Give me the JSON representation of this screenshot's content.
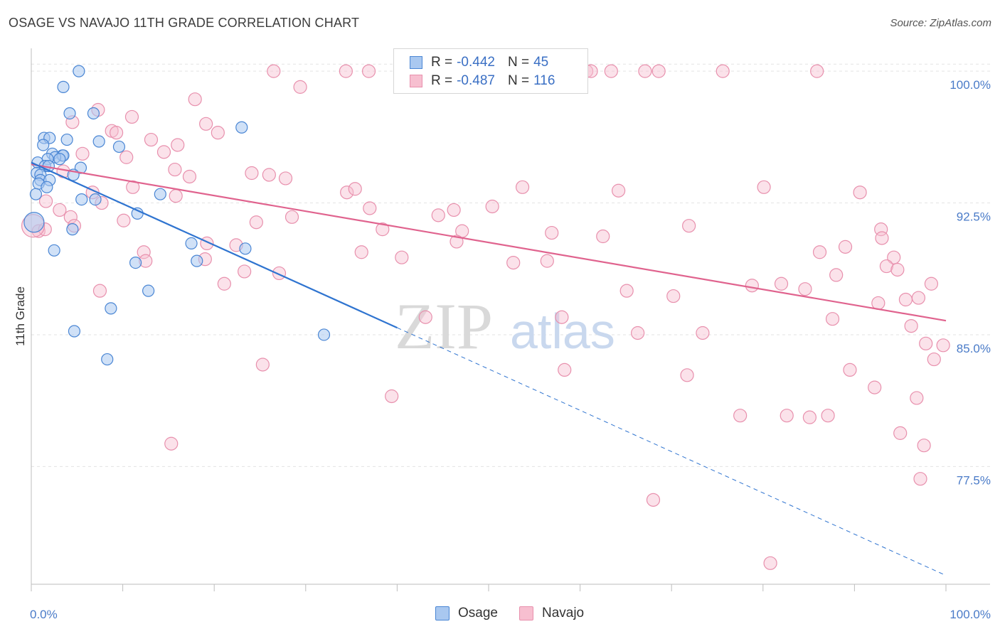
{
  "title": "OSAGE VS NAVAJO 11TH GRADE CORRELATION CHART",
  "source": "Source: ZipAtlas.com",
  "watermark": {
    "zip": "ZIP",
    "atlas": "atlas"
  },
  "colors": {
    "osage_fill": "#a9c8f0",
    "osage_stroke": "#4a86d4",
    "osage_line": "#2f74d0",
    "navajo_fill": "#f7bfd0",
    "navajo_stroke": "#e890ad",
    "navajo_line": "#e0638e",
    "grid": "#e3e3e3",
    "tick_text": "#4a7bc8"
  },
  "legend": {
    "rows": [
      {
        "r_label": "R =",
        "r_value": "-0.442",
        "n_label": "N =",
        "n_value": "45"
      },
      {
        "r_label": "R =",
        "r_value": "-0.487",
        "n_label": "N =",
        "n_value": "116"
      }
    ],
    "series": [
      "Osage",
      "Navajo"
    ]
  },
  "chart_data": {
    "type": "scatter",
    "ylabel": "11th Grade",
    "xlim": [
      0,
      100
    ],
    "ylim": [
      70.8,
      101.3
    ],
    "y_ticks": [
      {
        "value": 100.0,
        "label": "100.0%"
      },
      {
        "value": 92.5,
        "label": "92.5%"
      },
      {
        "value": 85.0,
        "label": "85.0%"
      },
      {
        "value": 77.5,
        "label": "77.5%"
      }
    ],
    "x_tick_labels": {
      "min": "0.0%",
      "max": "100.0%"
    },
    "grid": true,
    "legend_position": "top-center",
    "series": [
      {
        "name": "Osage",
        "trend": {
          "x": [
            0,
            40
          ],
          "y": [
            94.8,
            85.4
          ],
          "dashed_to": [
            100,
            71.3
          ]
        },
        "points": [
          [
            5.2,
            100.0
          ],
          [
            3.5,
            99.1
          ],
          [
            4.2,
            97.6
          ],
          [
            6.8,
            97.6
          ],
          [
            23.0,
            96.8
          ],
          [
            1.4,
            96.2
          ],
          [
            2.0,
            96.2
          ],
          [
            3.9,
            96.1
          ],
          [
            7.4,
            96.0
          ],
          [
            1.3,
            95.8
          ],
          [
            9.6,
            95.7
          ],
          [
            2.3,
            95.3
          ],
          [
            3.4,
            95.2
          ],
          [
            3.5,
            95.2
          ],
          [
            2.6,
            95.1
          ],
          [
            3.1,
            95.0
          ],
          [
            1.8,
            95.0
          ],
          [
            0.7,
            94.8
          ],
          [
            1.5,
            94.6
          ],
          [
            1.9,
            94.6
          ],
          [
            5.4,
            94.5
          ],
          [
            0.6,
            94.2
          ],
          [
            1.0,
            94.1
          ],
          [
            4.6,
            94.1
          ],
          [
            1.0,
            93.8
          ],
          [
            2.0,
            93.8
          ],
          [
            0.8,
            93.6
          ],
          [
            1.7,
            93.4
          ],
          [
            0.5,
            93.0
          ],
          [
            14.1,
            93.0
          ],
          [
            5.5,
            92.7
          ],
          [
            7.0,
            92.7
          ],
          [
            11.6,
            91.9
          ],
          [
            4.5,
            91.0
          ],
          [
            17.5,
            90.2
          ],
          [
            23.4,
            89.9
          ],
          [
            2.5,
            89.8
          ],
          [
            11.4,
            89.1
          ],
          [
            18.1,
            89.2
          ],
          [
            12.8,
            87.5
          ],
          [
            8.7,
            86.5
          ],
          [
            4.7,
            85.2
          ],
          [
            32.0,
            85.0
          ],
          [
            8.3,
            83.6
          ],
          [
            0.3,
            91.4
          ]
        ]
      },
      {
        "name": "Navajo",
        "trend": {
          "x": [
            0,
            100
          ],
          "y": [
            94.7,
            85.8
          ]
        },
        "points": [
          [
            26.5,
            100.0
          ],
          [
            34.4,
            100.0
          ],
          [
            36.9,
            100.0
          ],
          [
            60.7,
            100.0
          ],
          [
            61.2,
            100.0
          ],
          [
            63.4,
            100.0
          ],
          [
            67.1,
            100.0
          ],
          [
            68.6,
            100.0
          ],
          [
            75.6,
            100.0
          ],
          [
            85.9,
            100.0
          ],
          [
            29.4,
            99.1
          ],
          [
            17.9,
            98.4
          ],
          [
            7.3,
            97.8
          ],
          [
            11.0,
            97.4
          ],
          [
            4.5,
            97.1
          ],
          [
            19.1,
            97.0
          ],
          [
            8.8,
            96.6
          ],
          [
            9.3,
            96.5
          ],
          [
            20.4,
            96.5
          ],
          [
            13.1,
            96.1
          ],
          [
            16.0,
            95.8
          ],
          [
            5.6,
            95.3
          ],
          [
            10.4,
            95.1
          ],
          [
            14.5,
            95.4
          ],
          [
            3.5,
            94.3
          ],
          [
            15.7,
            94.4
          ],
          [
            24.1,
            94.2
          ],
          [
            17.3,
            94.0
          ],
          [
            26.0,
            94.1
          ],
          [
            27.8,
            93.9
          ],
          [
            11.1,
            93.4
          ],
          [
            6.7,
            93.1
          ],
          [
            34.5,
            93.1
          ],
          [
            35.4,
            93.3
          ],
          [
            53.7,
            93.4
          ],
          [
            64.2,
            93.2
          ],
          [
            80.1,
            93.4
          ],
          [
            90.6,
            93.1
          ],
          [
            1.6,
            92.6
          ],
          [
            7.7,
            92.5
          ],
          [
            37.0,
            92.2
          ],
          [
            46.2,
            92.1
          ],
          [
            3.1,
            92.1
          ],
          [
            10.1,
            91.5
          ],
          [
            4.3,
            91.7
          ],
          [
            24.6,
            91.4
          ],
          [
            28.5,
            91.7
          ],
          [
            71.9,
            91.2
          ],
          [
            38.4,
            91.0
          ],
          [
            47.1,
            90.9
          ],
          [
            56.9,
            90.8
          ],
          [
            0.8,
            90.9
          ],
          [
            1.5,
            91.0
          ],
          [
            4.7,
            91.2
          ],
          [
            92.9,
            91.0
          ],
          [
            93.0,
            90.5
          ],
          [
            46.5,
            90.3
          ],
          [
            19.2,
            90.2
          ],
          [
            22.4,
            90.1
          ],
          [
            89.0,
            90.0
          ],
          [
            12.3,
            89.7
          ],
          [
            36.1,
            89.7
          ],
          [
            40.5,
            89.4
          ],
          [
            86.2,
            89.7
          ],
          [
            94.3,
            89.4
          ],
          [
            12.5,
            89.2
          ],
          [
            19.0,
            89.3
          ],
          [
            52.7,
            89.1
          ],
          [
            93.5,
            88.9
          ],
          [
            94.7,
            88.7
          ],
          [
            23.3,
            88.6
          ],
          [
            27.1,
            88.5
          ],
          [
            88.0,
            88.4
          ],
          [
            21.1,
            87.9
          ],
          [
            7.5,
            87.5
          ],
          [
            78.8,
            87.8
          ],
          [
            82.0,
            87.9
          ],
          [
            84.6,
            87.6
          ],
          [
            98.4,
            87.9
          ],
          [
            70.2,
            87.2
          ],
          [
            92.6,
            86.8
          ],
          [
            95.6,
            87.0
          ],
          [
            97.0,
            87.1
          ],
          [
            58.0,
            86.0
          ],
          [
            87.6,
            85.9
          ],
          [
            43.1,
            86.0
          ],
          [
            66.3,
            85.1
          ],
          [
            73.4,
            85.1
          ],
          [
            96.2,
            85.5
          ],
          [
            97.8,
            84.5
          ],
          [
            99.7,
            84.4
          ],
          [
            25.3,
            83.3
          ],
          [
            58.3,
            83.0
          ],
          [
            71.7,
            82.7
          ],
          [
            89.5,
            83.0
          ],
          [
            98.7,
            83.6
          ],
          [
            92.2,
            82.0
          ],
          [
            39.4,
            81.5
          ],
          [
            96.8,
            81.4
          ],
          [
            77.5,
            80.4
          ],
          [
            82.6,
            80.4
          ],
          [
            85.1,
            80.3
          ],
          [
            87.1,
            80.4
          ],
          [
            95.0,
            79.4
          ],
          [
            97.6,
            78.7
          ],
          [
            15.3,
            78.8
          ],
          [
            97.2,
            76.8
          ],
          [
            68.0,
            75.6
          ],
          [
            80.8,
            72.0
          ],
          [
            15.8,
            92.9
          ],
          [
            50.4,
            92.3
          ],
          [
            56.4,
            89.2
          ],
          [
            44.5,
            91.8
          ],
          [
            65.1,
            87.5
          ],
          [
            62.5,
            90.6
          ],
          [
            0.2,
            91.2
          ]
        ]
      }
    ]
  }
}
